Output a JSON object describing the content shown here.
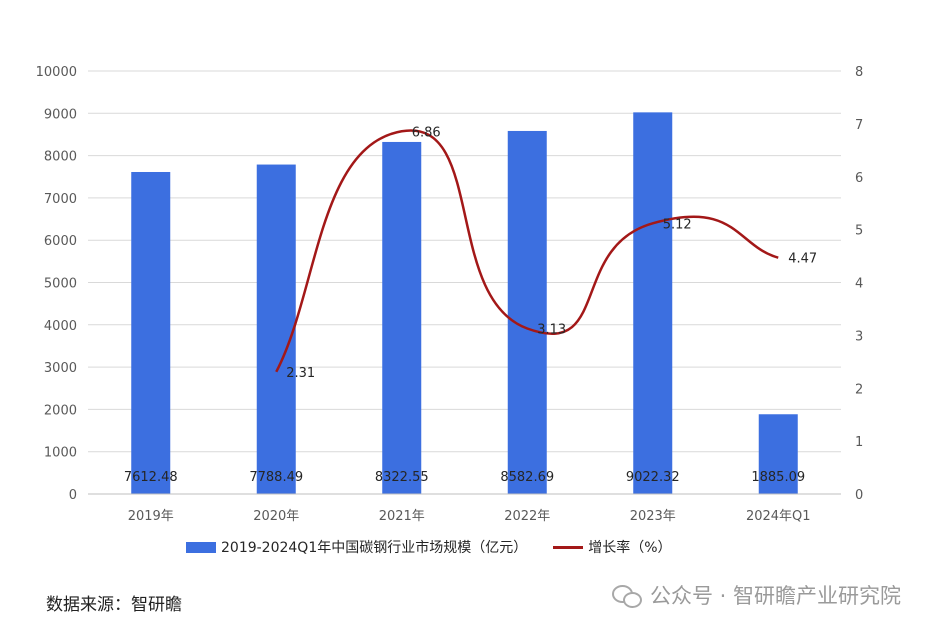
{
  "chart_data": {
    "type": "bar",
    "categories": [
      "2019年",
      "2020年",
      "2021年",
      "2022年",
      "2023年",
      "2024年Q1"
    ],
    "series": [
      {
        "name": "2019-2024Q1年中国碳钢行业市场规模（亿元）",
        "type": "bar",
        "axis": "left",
        "values": [
          7612.48,
          7788.49,
          8322.55,
          8582.69,
          9022.32,
          1885.09
        ],
        "labels": [
          "7612.48",
          "7788.49",
          "8322.55",
          "8582.69",
          "9022.32",
          "1885.09"
        ],
        "color": "#3c6fe0"
      },
      {
        "name": "增长率（%）",
        "type": "line",
        "axis": "right",
        "smooth": true,
        "values": [
          null,
          2.31,
          6.86,
          3.13,
          5.12,
          4.47
        ],
        "labels": [
          "",
          "2.31",
          "6.86",
          "3.13",
          "5.12",
          "4.47"
        ],
        "color": "#a31818"
      }
    ],
    "y_left": {
      "min": 0,
      "max": 10000,
      "step": 1000,
      "ticks": [
        "0",
        "1000",
        "2000",
        "3000",
        "4000",
        "5000",
        "6000",
        "7000",
        "8000",
        "9000",
        "10000"
      ]
    },
    "y_right": {
      "min": 0,
      "max": 8,
      "step": 1,
      "ticks": [
        "0",
        "1",
        "2",
        "3",
        "4",
        "5",
        "6",
        "7",
        "8"
      ]
    },
    "grid": true,
    "legend_position": "bottom"
  },
  "legend": {
    "bar_label": "2019-2024Q1年中国碳钢行业市场规模（亿元）",
    "line_label": "增长率（%）"
  },
  "source_text": "数据来源：智研瞻",
  "watermark_text": "公众号 · 智研瞻产业研究院",
  "watermark_icon": "wechat-icon"
}
